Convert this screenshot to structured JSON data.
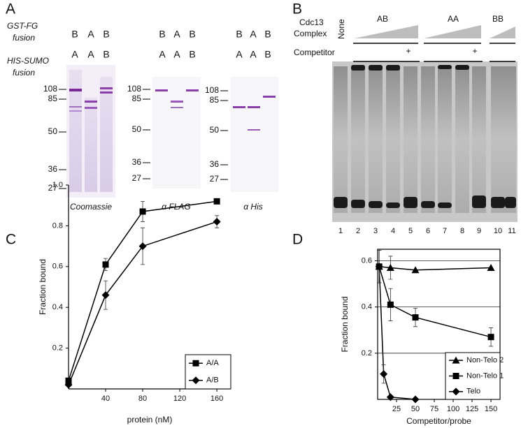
{
  "panel_a": {
    "letter": "A",
    "row_labels": [
      [
        "GST-FG",
        "fusion"
      ],
      [
        "HIS-SUMO",
        "fusion"
      ]
    ],
    "blots": [
      {
        "top": [
          "B",
          "A",
          "B"
        ],
        "bottom": [
          "A",
          "A",
          "B"
        ],
        "markers": [
          "108",
          "85",
          "50",
          "36",
          "27"
        ],
        "caption": "Coomassie"
      },
      {
        "top": [
          "B",
          "A",
          "B"
        ],
        "bottom": [
          "A",
          "A",
          "B"
        ],
        "markers": [
          "108",
          "85",
          "50",
          "36",
          "27"
        ],
        "caption": "α FLAG"
      },
      {
        "top": [
          "B",
          "A",
          "B"
        ],
        "bottom": [
          "A",
          "A",
          "B"
        ],
        "markers": [
          "108",
          "85",
          "50",
          "36",
          "27"
        ],
        "caption": "α His"
      }
    ]
  },
  "panel_b": {
    "letter": "B",
    "complex_label": [
      "Cdc13",
      "Complex"
    ],
    "none": "None",
    "groups": [
      "AB",
      "AA",
      "BB"
    ],
    "competitor": "Competitor",
    "plus": [
      "+",
      "+"
    ],
    "lanes": [
      "1",
      "2",
      "3",
      "4",
      "5",
      "6",
      "7",
      "8",
      "9",
      "10",
      "11"
    ]
  },
  "chart_data": [
    {
      "type": "line",
      "panel": "C",
      "x_label": "protein (nM)",
      "y_label": "Fraction bound",
      "xlim": [
        0,
        175
      ],
      "xticks": [
        40,
        80,
        120,
        160
      ],
      "ylim": [
        0,
        1.0
      ],
      "yticks": [
        0.2,
        0.4,
        0.6,
        0.8,
        {
          "value": 1.0,
          "label": "1.0"
        }
      ],
      "grid": false,
      "legend": "lower right",
      "series": [
        {
          "name": "A/A",
          "color": "#000000",
          "marker": "square",
          "x": [
            0,
            40,
            80,
            160
          ],
          "values": [
            0.04,
            0.61,
            0.87,
            0.92
          ],
          "errors": [
            null,
            0.03,
            0.05,
            null
          ]
        },
        {
          "name": "A/B",
          "color": "#000000",
          "marker": "diamond",
          "x": [
            0,
            40,
            80,
            160
          ],
          "values": [
            0.02,
            0.46,
            0.7,
            0.82
          ],
          "errors": [
            null,
            0.07,
            0.09,
            0.03
          ]
        }
      ]
    },
    {
      "type": "line",
      "panel": "D",
      "x_label": "Competitor/probe",
      "y_label": "Fraction bound",
      "xlim": [
        0,
        162
      ],
      "xticks": [
        25,
        50,
        75,
        100,
        125,
        150
      ],
      "ylim": [
        0,
        0.65
      ],
      "yticks": [
        0.2,
        0.4,
        0.6
      ],
      "grid": true,
      "legend": "lower right",
      "series": [
        {
          "name": "Non-Telo 2",
          "color": "#000000",
          "marker": "triangle",
          "x": [
            2,
            17,
            50,
            150
          ],
          "values": [
            0.575,
            0.57,
            0.56,
            0.57
          ],
          "errors": [
            0.07,
            0.05,
            null,
            null
          ]
        },
        {
          "name": "Non-Telo 1",
          "color": "#000000",
          "marker": "square",
          "x": [
            2,
            17,
            50,
            150
          ],
          "values": [
            0.575,
            0.41,
            0.355,
            0.27
          ],
          "errors": [
            0.07,
            0.07,
            0.04,
            0.04
          ]
        },
        {
          "name": "Telo",
          "color": "#000000",
          "marker": "diamond",
          "x": [
            2,
            8,
            17,
            50
          ],
          "values": [
            0.575,
            0.11,
            0.01,
            0.0
          ],
          "errors": [
            0.07,
            0.04,
            null,
            null
          ]
        }
      ]
    }
  ]
}
